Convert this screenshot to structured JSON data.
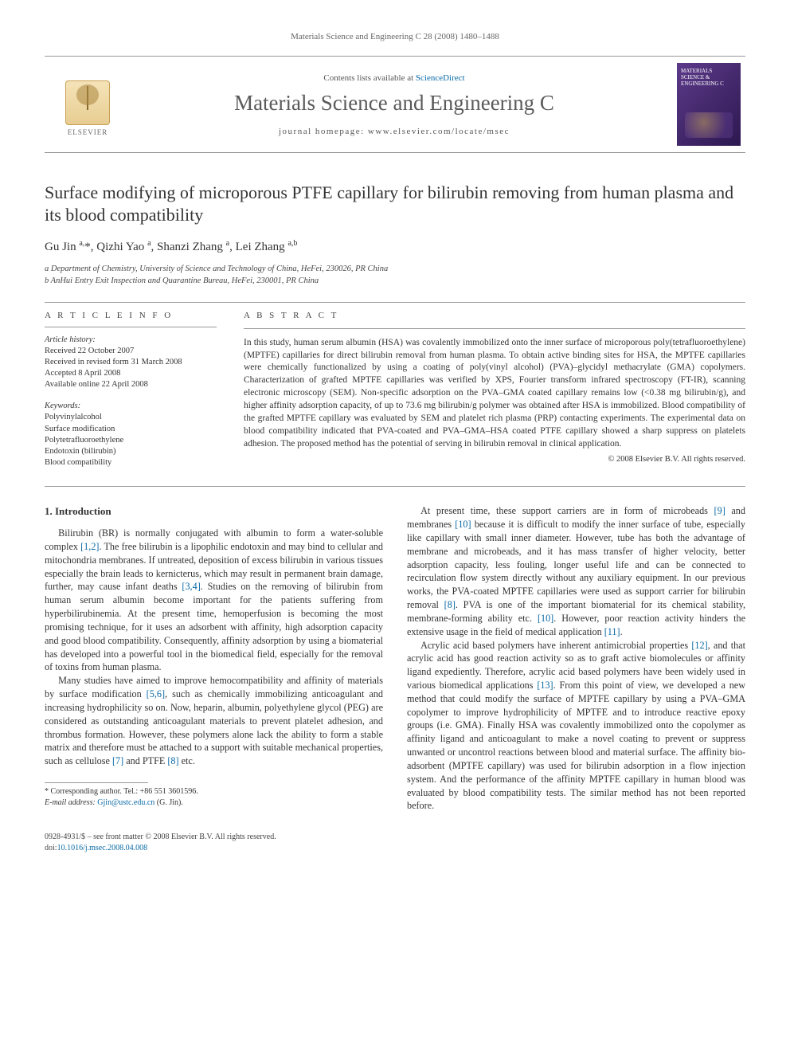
{
  "page_bg": "#ffffff",
  "text_color": "#333333",
  "link_color": "#0a6aa6",
  "rule_color": "#999999",
  "running_header": "Materials Science and Engineering C 28 (2008) 1480–1488",
  "masthead": {
    "contents_prefix": "Contents lists available at ",
    "contents_link": "ScienceDirect",
    "journal": "Materials Science and Engineering C",
    "homepage_label": "journal homepage: ",
    "homepage_url": "www.elsevier.com/locate/msec",
    "publisher": "ELSEVIER",
    "cover_text": "MATERIALS SCIENCE & ENGINEERING C"
  },
  "title": "Surface modifying of microporous PTFE capillary for bilirubin removing from human plasma and its blood compatibility",
  "authors_html": "Gu Jin <sup>a,</sup>*, Qizhi Yao <sup>a</sup>, Shanzi Zhang <sup>a</sup>, Lei Zhang <sup>a,b</sup>",
  "affiliations": [
    "a Department of Chemistry, University of Science and Technology of China, HeFei, 230026, PR China",
    "b AnHui Entry Exit Inspection and Quarantine Bureau, HeFei, 230001, PR China"
  ],
  "info": {
    "heading": "A R T I C L E   I N F O",
    "history_label": "Article history:",
    "history": [
      "Received 22 October 2007",
      "Received in revised form 31 March 2008",
      "Accepted 8 April 2008",
      "Available online 22 April 2008"
    ],
    "keywords_label": "Keywords:",
    "keywords": [
      "Polyvinylalcohol",
      "Surface modification",
      "Polytetrafluoroethylene",
      "Endotoxin (bilirubin)",
      "Blood compatibility"
    ]
  },
  "abstract": {
    "heading": "A B S T R A C T",
    "text": "In this study, human serum albumin (HSA) was covalently immobilized onto the inner surface of microporous poly(tetrafluoroethylene) (MPTFE) capillaries for direct bilirubin removal from human plasma. To obtain active binding sites for HSA, the MPTFE capillaries were chemically functionalized by using a coating of poly(vinyl alcohol) (PVA)–glycidyl methacrylate (GMA) copolymers. Characterization of grafted MPTFE capillaries was verified by XPS, Fourier transform infrared spectroscopy (FT-IR), scanning electronic microscopy (SEM). Non-specific adsorption on the PVA–GMA coated capillary remains low (<0.38 mg bilirubin/g), and higher affinity adsorption capacity, of up to 73.6 mg bilirubin/g polymer was obtained after HSA is immobilized. Blood compatibility of the grafted MPTFE capillary was evaluated by SEM and platelet rich plasma (PRP) contacting experiments. The experimental data on blood compatibility indicated that PVA-coated and PVA–GMA–HSA coated PTFE capillary showed a sharp suppress on platelets adhesion. The proposed method has the potential of serving in bilirubin removal in clinical application.",
    "copyright": "© 2008 Elsevier B.V. All rights reserved."
  },
  "body": {
    "section_heading": "1. Introduction",
    "p1": "Bilirubin (BR) is normally conjugated with albumin to form a water-soluble complex [1,2]. The free bilirubin is a lipophilic endotoxin and may bind to cellular and mitochondria membranes. If untreated, deposition of excess bilirubin in various tissues especially the brain leads to kernicterus, which may result in permanent brain damage, further, may cause infant deaths [3,4]. Studies on the removing of bilirubin from human serum albumin become important for the patients suffering from hyperbilirubinemia. At the present time, hemoperfusion is becoming the most promising technique, for it uses an adsorbent with affinity, high adsorption capacity and good blood compatibility. Consequently, affinity adsorption by using a biomaterial has developed into a powerful tool in the biomedical field, especially for the removal of toxins from human plasma.",
    "p2": "Many studies have aimed to improve hemocompatibility and affinity of materials by surface modification [5,6], such as chemically immobilizing anticoagulant and increasing hydrophilicity so on. Now, heparin, albumin, polyethylene glycol (PEG) are considered as outstanding anticoagulant materials to prevent platelet adhesion, and thrombus formation. However, these polymers alone lack the ability to form a stable matrix and therefore must be attached to a support with suitable mechanical properties, such as cellulose [7] and PTFE [8] etc.",
    "p3": "At present time, these support carriers are in form of microbeads [9] and membranes [10] because it is difficult to modify the inner surface of tube, especially like capillary with small inner diameter. However, tube has both the advantage of membrane and microbeads, and it has mass transfer of higher velocity, better adsorption capacity, less fouling, longer useful life and can be connected to recirculation flow system directly without any auxiliary equipment. In our previous works, the PVA-coated MPTFE capillaries were used as support carrier for bilirubin removal [8]. PVA is one of the important biomaterial for its chemical stability, membrane-forming ability etc. [10]. However, poor reaction activity hinders the extensive usage in the field of medical application [11].",
    "p4": "Acrylic acid based polymers have inherent antimicrobial properties [12], and that acrylic acid has good reaction activity so as to graft active biomolecules or affinity ligand expediently. Therefore, acrylic acid based polymers have been widely used in various biomedical applications [13]. From this point of view, we developed a new method that could modify the surface of MPTFE capillary by using a PVA–GMA copolymer to improve hydrophilicity of MPTFE and to introduce reactive epoxy groups (i.e. GMA). Finally HSA was covalently immobilized onto the copolymer as affinity ligand and anticoagulant to make a novel coating to prevent or suppress unwanted or uncontrol reactions between blood and material surface. The affinity bio-adsorbent (MPTFE capillary) was used for bilirubin adsorption in a flow injection system. And the performance of the affinity MPTFE capillary in human blood was evaluated by blood compatibility tests. The similar method has not been reported before."
  },
  "footnote": {
    "corresponding": "* Corresponding author. Tel.: +86 551 3601596.",
    "email_label": "E-mail address: ",
    "email": "Gjin@ustc.edu.cn",
    "email_after": " (G. Jin)."
  },
  "footer": {
    "line1": "0928-4931/$ – see front matter © 2008 Elsevier B.V. All rights reserved.",
    "doi_label": "doi:",
    "doi": "10.1016/j.msec.2008.04.008"
  }
}
